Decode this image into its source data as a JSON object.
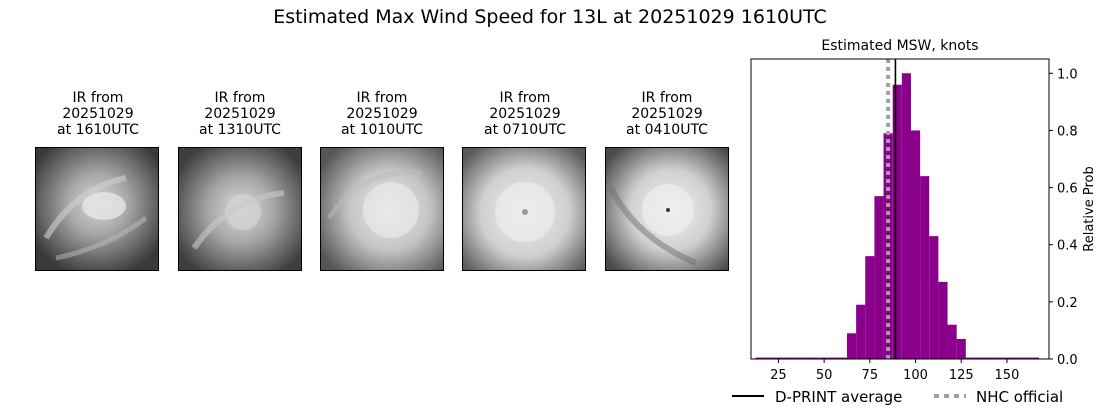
{
  "title": "Estimated Max Wind Speed for 13L at 20251029 1610UTC",
  "ir_panels": [
    {
      "label_line1": "IR from",
      "label_line2": "20251029",
      "label_line3": "at 1610UTC"
    },
    {
      "label_line1": "IR from",
      "label_line2": "20251029",
      "label_line3": "at 1310UTC"
    },
    {
      "label_line1": "IR from",
      "label_line2": "20251029",
      "label_line3": "at 1010UTC"
    },
    {
      "label_line1": "IR from",
      "label_line2": "20251029",
      "label_line3": "at 0710UTC"
    },
    {
      "label_line1": "IR from",
      "label_line2": "20251029",
      "label_line3": "at 0410UTC"
    }
  ],
  "chart_data": {
    "type": "bar",
    "title": "Estimated MSW, knots",
    "xlabel": "",
    "ylabel": "Relative Prob",
    "xlim": [
      10,
      173
    ],
    "ylim": [
      0,
      1.05
    ],
    "xticks": [
      25,
      50,
      75,
      100,
      125,
      150
    ],
    "yticks": [
      0.0,
      0.2,
      0.4,
      0.6,
      0.8,
      1.0
    ],
    "bar_width": 5,
    "bar_color": "#8b008b",
    "bins": [
      15,
      20,
      25,
      30,
      35,
      40,
      45,
      50,
      55,
      60,
      65,
      70,
      75,
      80,
      85,
      90,
      95,
      100,
      105,
      110,
      115,
      120,
      125,
      130,
      135,
      140,
      145,
      150,
      155,
      160,
      165
    ],
    "values": [
      0.005,
      0.005,
      0.005,
      0.005,
      0.005,
      0.005,
      0.005,
      0.005,
      0.005,
      0.005,
      0.09,
      0.19,
      0.36,
      0.57,
      0.79,
      0.96,
      1.0,
      0.8,
      0.64,
      0.43,
      0.27,
      0.12,
      0.07,
      0.005,
      0.005,
      0.005,
      0.005,
      0.005,
      0.005,
      0.005,
      0.005
    ],
    "dprint_average": 89,
    "nhc_official": 85,
    "legend": [
      {
        "label": "D-PRINT average",
        "style": "solid",
        "color": "#000000"
      },
      {
        "label": "NHC official",
        "style": "dotted",
        "color": "#a0a0a0"
      }
    ],
    "legend_placement": "bottom"
  }
}
